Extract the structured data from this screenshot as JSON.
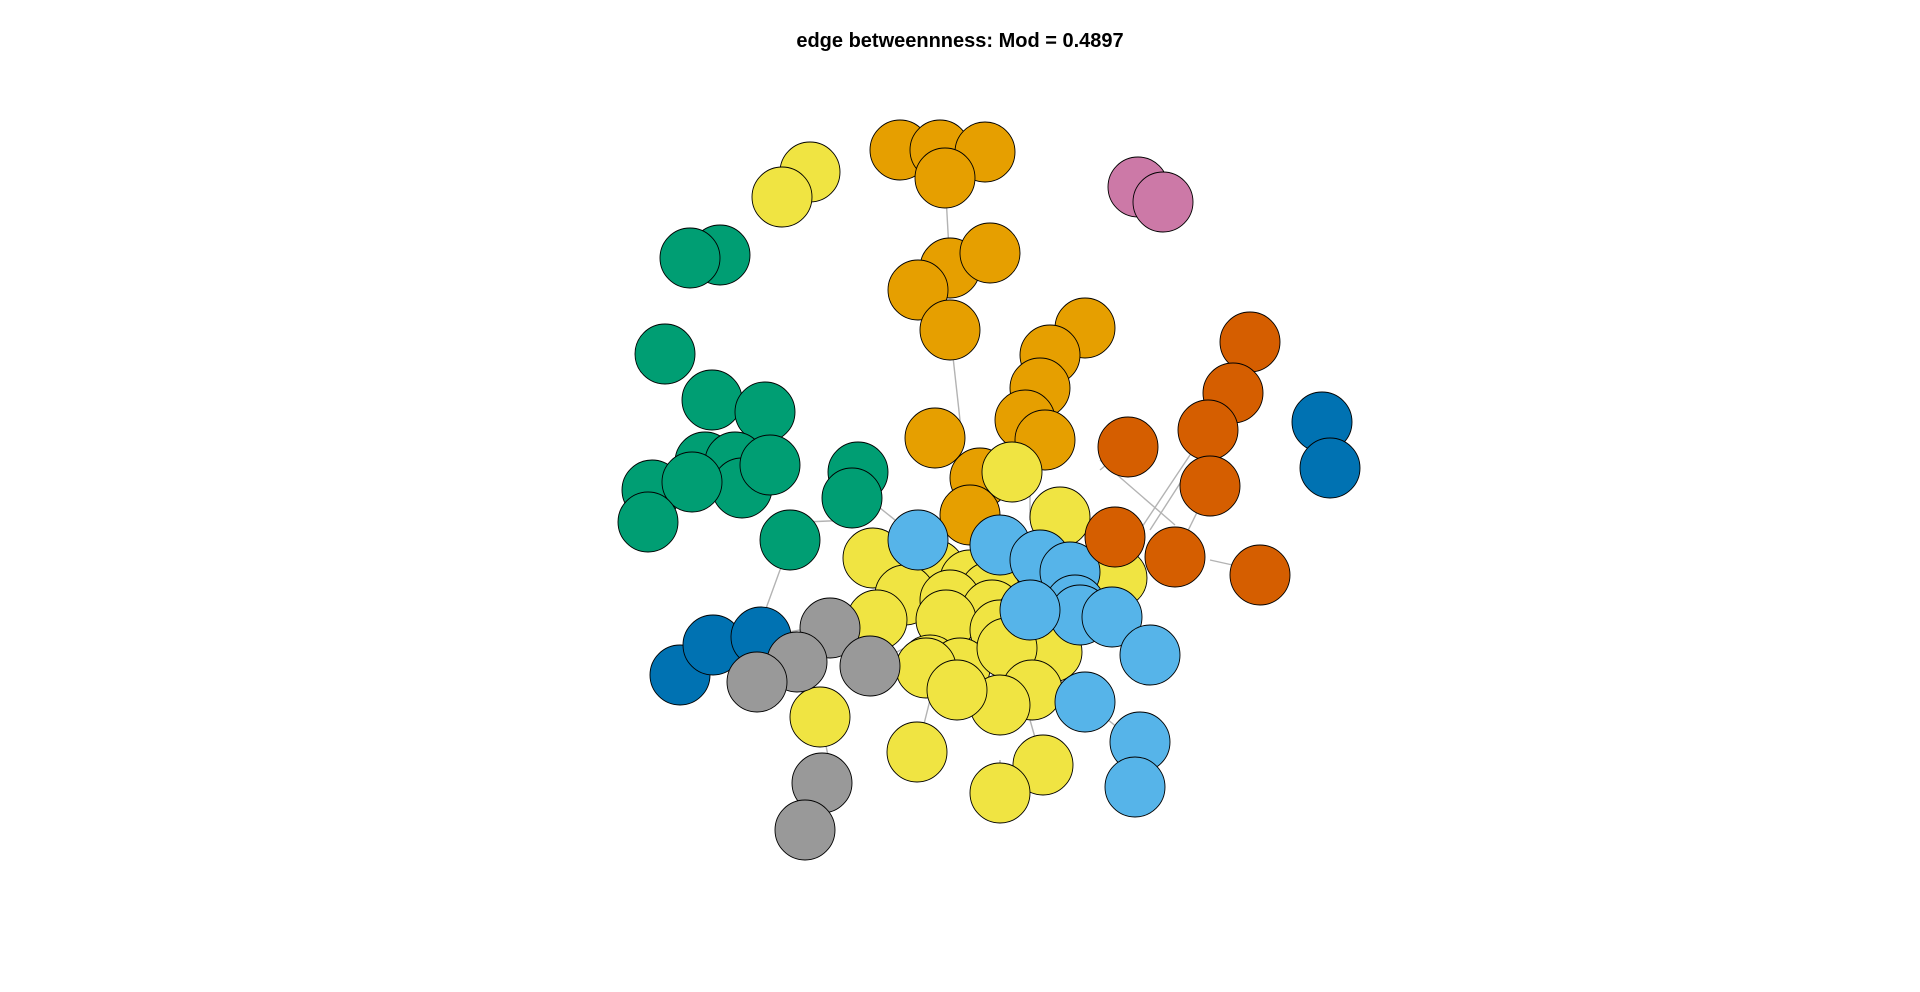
{
  "title": "edge betweennness: Mod = 0.4897",
  "community_colors": {
    "green": "#009E73",
    "orange": "#E69F00",
    "yellow": "#F0E442",
    "sky": "#56B4E9",
    "vermillion": "#D55E00",
    "blue": "#0072B2",
    "pink": "#CC79A7",
    "gray": "#999999"
  },
  "edge_color": "#B3B3B3",
  "node_border_color": "#000000"
}
